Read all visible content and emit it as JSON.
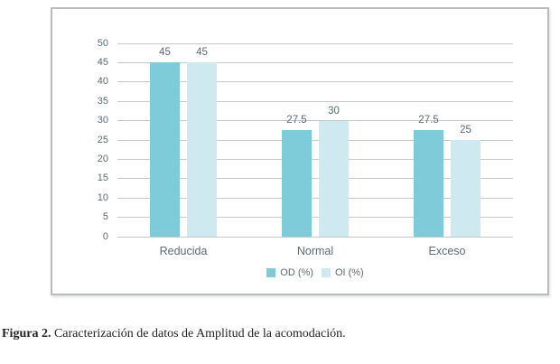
{
  "figure": {
    "caption_label": "Figura 2.",
    "caption_text": "Caracterización de datos de Amplitud de la acomodación."
  },
  "chart_data": {
    "type": "bar",
    "categories": [
      "Reducida",
      "Normal",
      "Exceso"
    ],
    "series": [
      {
        "name": "OD (%)",
        "color": "#7ecbda",
        "values": [
          45,
          27.5,
          27.5
        ]
      },
      {
        "name": "OI (%)",
        "color": "#cfe9f1",
        "values": [
          45,
          30,
          25
        ]
      }
    ],
    "data_labels": [
      [
        "45",
        "27.5",
        "27.5"
      ],
      [
        "45",
        "30",
        "25"
      ]
    ],
    "ylim": [
      0,
      50
    ],
    "yticks": [
      0,
      5,
      10,
      15,
      20,
      25,
      30,
      35,
      40,
      45,
      50
    ],
    "grid": true,
    "legend_position": "bottom",
    "colors": {
      "grid": "#c6c8ca",
      "text": "#5d6a72",
      "panel_border": "#b8bbbd"
    }
  }
}
